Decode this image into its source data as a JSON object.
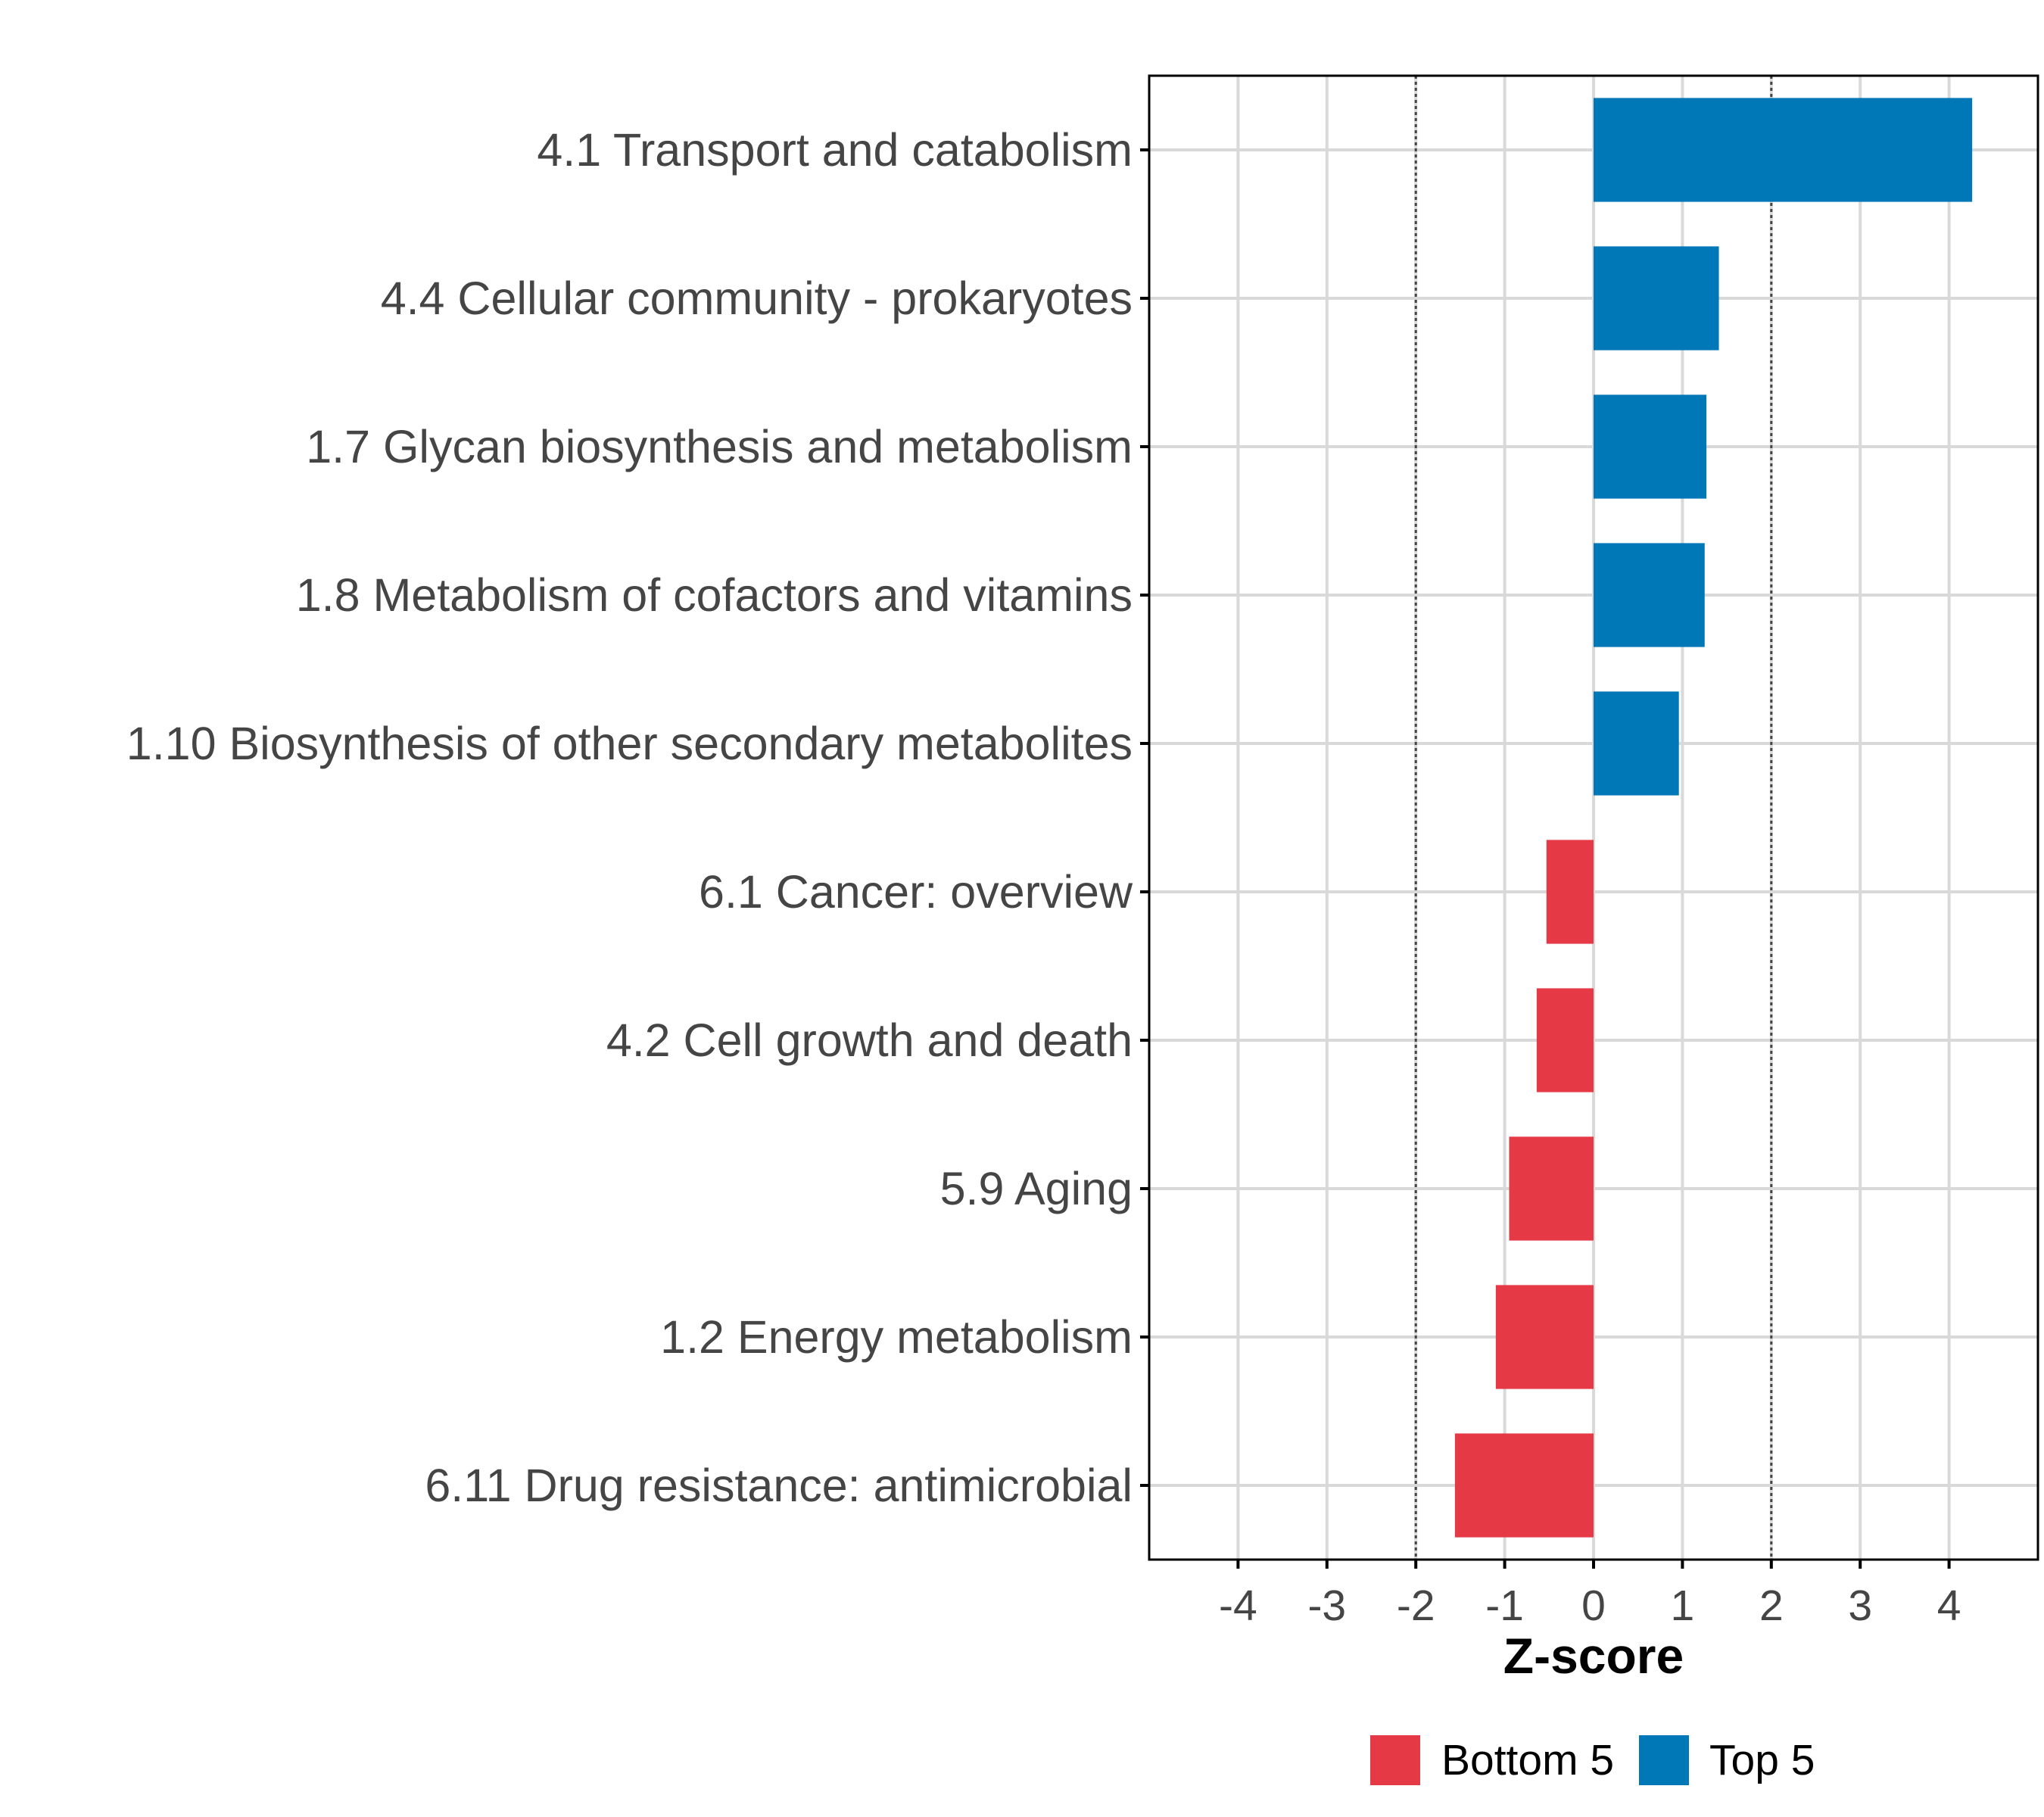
{
  "chart_data": {
    "type": "bar",
    "orientation": "horizontal",
    "title": "",
    "xlabel": "Z-score",
    "ylabel": "",
    "xlim": [
      -5,
      5
    ],
    "xticks": [
      -4,
      -3,
      -2,
      -1,
      0,
      1,
      2,
      3,
      4
    ],
    "xtick_labels": [
      "-4",
      "-3",
      "-2",
      "-1",
      "0",
      "1",
      "2",
      "3",
      "4"
    ],
    "reference_lines": [
      -2,
      2
    ],
    "grid": true,
    "categories": [
      "4.1 Transport and catabolism",
      "4.4 Cellular community - prokaryotes",
      "1.7 Glycan biosynthesis and metabolism",
      "1.8 Metabolism of cofactors and vitamins",
      "1.10 Biosynthesis of other secondary metabolites",
      "6.1 Cancer: overview",
      "4.2 Cell growth and death",
      "5.9 Aging",
      "1.2 Energy metabolism",
      "6.11 Drug resistance: antimicrobial"
    ],
    "values": [
      4.26,
      1.41,
      1.27,
      1.25,
      0.96,
      -0.53,
      -0.64,
      -0.95,
      -1.1,
      -1.56
    ],
    "groups": [
      "Top 5",
      "Top 5",
      "Top 5",
      "Top 5",
      "Top 5",
      "Bottom 5",
      "Bottom 5",
      "Bottom 5",
      "Bottom 5",
      "Bottom 5"
    ],
    "legend": {
      "position": "bottom",
      "entries": [
        {
          "label": "Bottom 5",
          "color": "#E63946"
        },
        {
          "label": "Top 5",
          "color": "#0077B6"
        }
      ]
    },
    "colors": {
      "Top 5": "#0077B6",
      "Bottom 5": "#E63946"
    }
  }
}
